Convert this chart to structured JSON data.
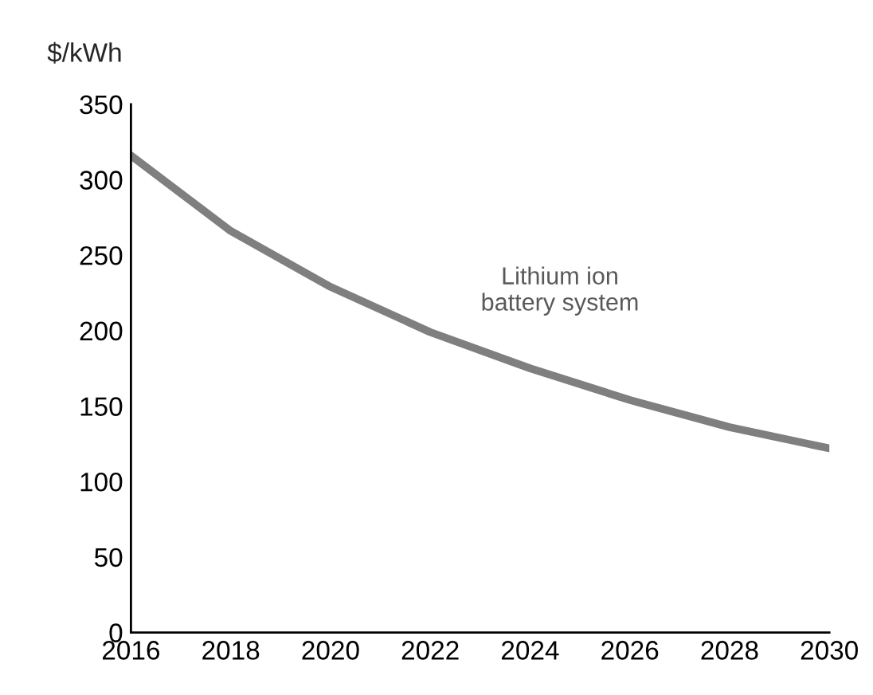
{
  "chart_data": {
    "type": "line",
    "ylabel": "$/kWh",
    "x": [
      2016,
      2018,
      2020,
      2022,
      2024,
      2026,
      2028,
      2030
    ],
    "series": [
      {
        "name": "Lithium ion\nbattery system",
        "color": "#7f7f7f",
        "values": [
          316,
          266,
          229,
          199,
          175,
          154,
          136,
          122
        ]
      }
    ],
    "xlim": [
      2016,
      2030
    ],
    "xticks": [
      2016,
      2018,
      2020,
      2022,
      2024,
      2026,
      2028,
      2030
    ],
    "ylim": [
      0,
      350
    ],
    "yticks": [
      0,
      50,
      100,
      150,
      200,
      250,
      300,
      350
    ],
    "grid": false,
    "legend": false,
    "marker": "none",
    "line_style": "solid"
  }
}
